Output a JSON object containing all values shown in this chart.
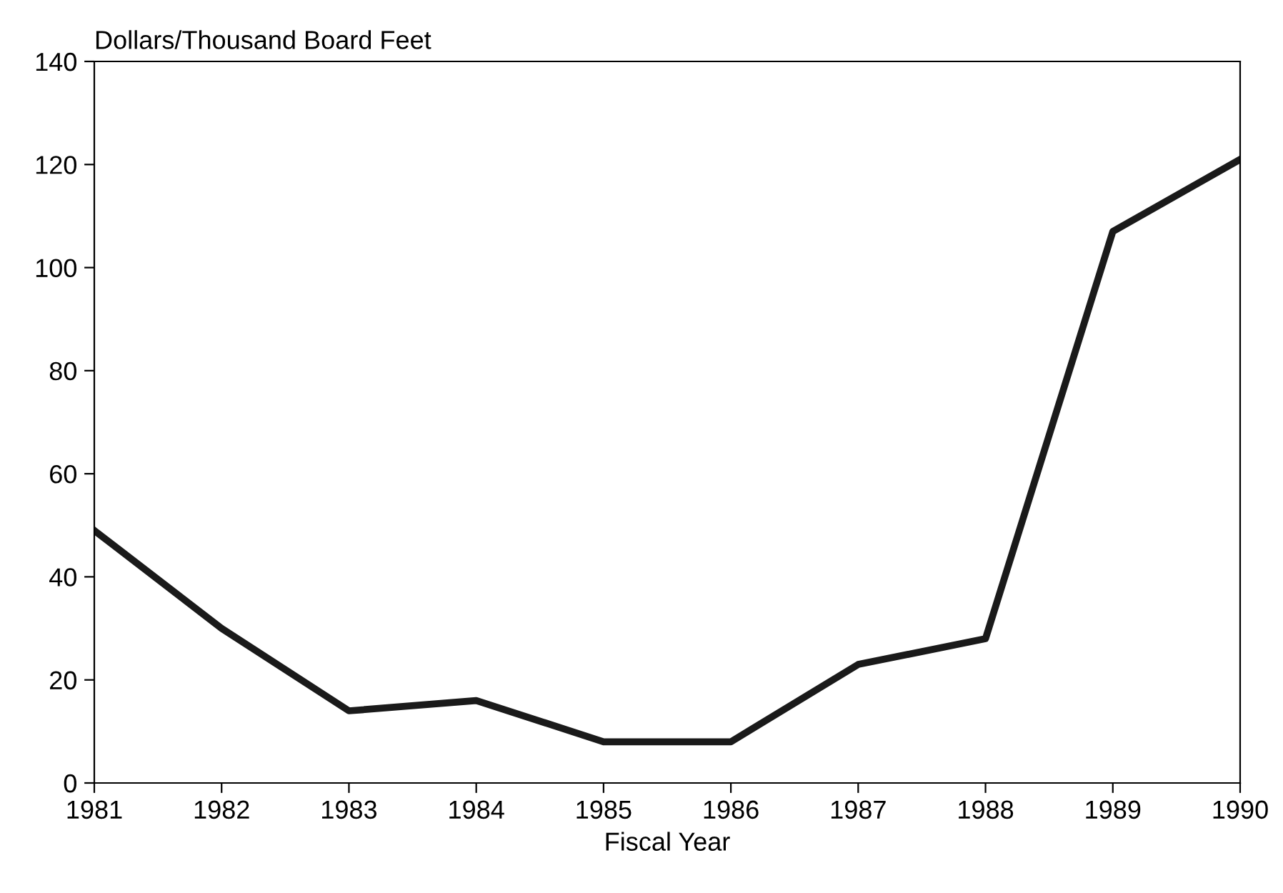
{
  "chart_data": {
    "type": "line",
    "ylabel": "Dollars/Thousand Board Feet",
    "xlabel": "Fiscal Year",
    "x": [
      1981,
      1982,
      1983,
      1984,
      1985,
      1986,
      1987,
      1988,
      1989,
      1990
    ],
    "series": [
      {
        "color": "#1a1a1a",
        "values": [
          49,
          30,
          14,
          16,
          8,
          8,
          23,
          28,
          107,
          121
        ]
      }
    ],
    "xlim": [
      1981,
      1990
    ],
    "xticks": [
      1981,
      1982,
      1983,
      1984,
      1985,
      1986,
      1987,
      1988,
      1989,
      1990
    ],
    "ylim": [
      0,
      140
    ],
    "yticks": [
      0,
      20,
      40,
      60,
      80,
      100,
      120,
      140
    ],
    "grid": false,
    "legend": false,
    "marker": "none",
    "line_style": "solid"
  }
}
